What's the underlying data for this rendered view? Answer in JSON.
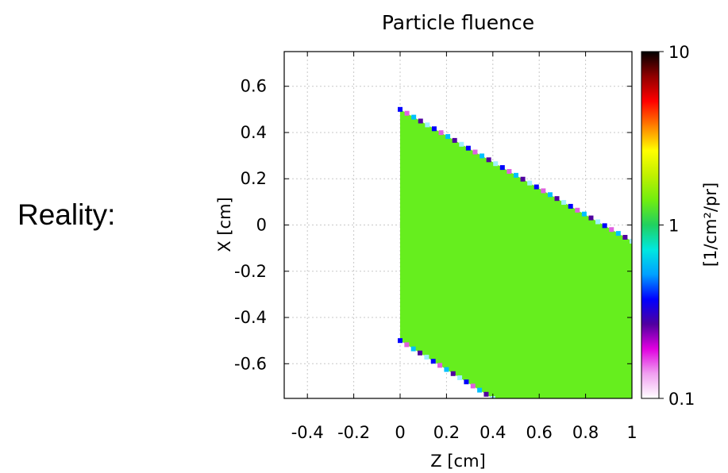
{
  "side_label": "Reality:",
  "chart_data": {
    "type": "heatmap",
    "title": "Particle fluence",
    "xlabel": "Z [cm]",
    "ylabel": "X [cm]",
    "xlim": [
      -0.5,
      1.0
    ],
    "ylim": [
      -0.75,
      0.75
    ],
    "x_ticks": [
      "-0.4",
      "-0.2",
      "0",
      "0.2",
      "0.4",
      "0.6",
      "0.8",
      "1"
    ],
    "x_tick_values": [
      -0.4,
      -0.2,
      0,
      0.2,
      0.4,
      0.6,
      0.8,
      1.0
    ],
    "y_ticks": [
      "0.6",
      "0.4",
      "0.2",
      "0",
      "-0.2",
      "-0.4",
      "-0.6"
    ],
    "y_tick_values": [
      0.6,
      0.4,
      0.2,
      0,
      -0.2,
      -0.4,
      -0.6
    ],
    "grid": true,
    "region": {
      "z_start": 0,
      "z_end": 1.0,
      "top_edge": [
        [
          0,
          0.5
        ],
        [
          1.0,
          -0.07
        ]
      ],
      "bottom_edge": [
        [
          0,
          -0.5
        ],
        [
          0.4,
          -0.75
        ]
      ],
      "fluence_value": 1.0,
      "fill_color": "#66ee1e"
    },
    "colorbar": {
      "scale": "log",
      "min": 0.1,
      "max": 10,
      "tick_labels": [
        "10",
        "1",
        "0.1"
      ],
      "tick_values": [
        10,
        1,
        0.1
      ],
      "label": "[1/cm²/pr]",
      "colors": [
        "#ffffff",
        "#f0a0f0",
        "#e000e0",
        "#5000a0",
        "#0000ff",
        "#00a0ff",
        "#00e8e0",
        "#20d060",
        "#70ee10",
        "#c0f000",
        "#ffff00",
        "#ff8000",
        "#ff0000",
        "#900000",
        "#000000"
      ]
    }
  }
}
